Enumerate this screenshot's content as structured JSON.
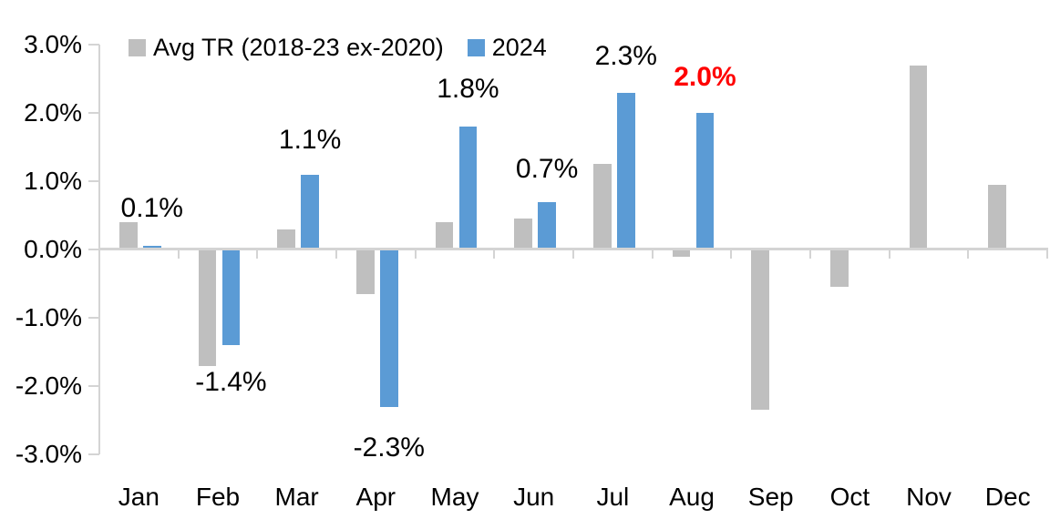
{
  "chart_data": {
    "type": "bar",
    "title": "",
    "xlabel": "",
    "ylabel": "",
    "categories": [
      "Jan",
      "Feb",
      "Mar",
      "Apr",
      "May",
      "Jun",
      "Jul",
      "Aug",
      "Sep",
      "Oct",
      "Nov",
      "Dec"
    ],
    "series": [
      {
        "name": "Avg TR (2018-23 ex-2020)",
        "color": "#BFBFBF",
        "values": [
          0.4,
          -1.7,
          0.3,
          -0.65,
          0.4,
          0.45,
          1.25,
          -0.1,
          -2.35,
          -0.55,
          2.7,
          0.95
        ]
      },
      {
        "name": "2024",
        "color": "#5B9BD5",
        "values": [
          0.05,
          -1.4,
          1.1,
          -2.3,
          1.8,
          0.7,
          2.3,
          2.0,
          null,
          null,
          null,
          null
        ],
        "data_labels": [
          {
            "text": "0.1%",
            "color": "#000000",
            "bold": false
          },
          {
            "text": "-1.4%",
            "color": "#000000",
            "bold": false
          },
          {
            "text": "1.1%",
            "color": "#000000",
            "bold": false
          },
          {
            "text": "-2.3%",
            "color": "#000000",
            "bold": false
          },
          {
            "text": "1.8%",
            "color": "#000000",
            "bold": false
          },
          {
            "text": "0.7%",
            "color": "#000000",
            "bold": false
          },
          {
            "text": "2.3%",
            "color": "#000000",
            "bold": false
          },
          {
            "text": "2.0%",
            "color": "#FF0000",
            "bold": true
          },
          null,
          null,
          null,
          null
        ]
      }
    ],
    "ylim": [
      -3,
      3
    ],
    "y_tick_values": [
      3,
      2,
      1,
      0,
      -1,
      -2,
      -3
    ],
    "y_ticks": [
      "3.0%",
      "2.0%",
      "1.0%",
      "0.0%",
      "-1.0%",
      "-2.0%",
      "-3.0%"
    ],
    "grid": false,
    "legend_position": "top",
    "axis_color": "#D4D4D4"
  }
}
